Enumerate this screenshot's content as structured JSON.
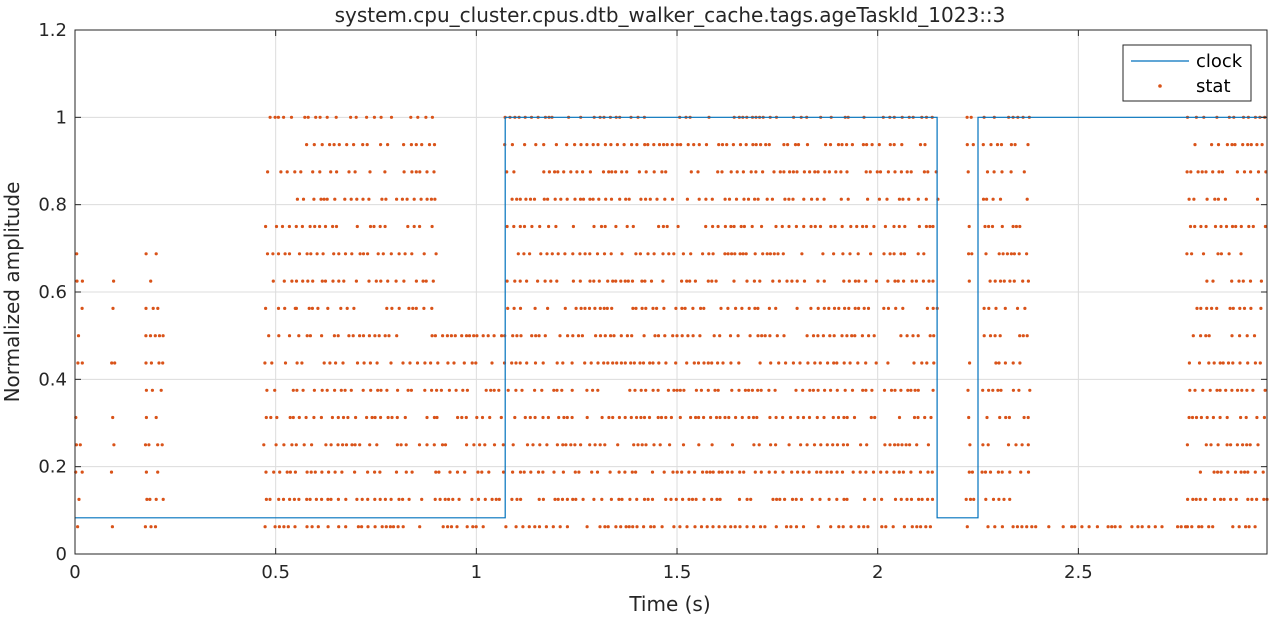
{
  "chart_data": {
    "type": "line",
    "title": "system.cpu_cluster.cpus.dtb_walker_cache.tags.ageTaskId_1023::3",
    "xlabel": "Time (s)",
    "ylabel": "Normalized amplitude",
    "xlim": [
      0,
      2.97
    ],
    "ylim": [
      0,
      1.2
    ],
    "xticks": [
      0,
      0.5,
      1,
      1.5,
      2,
      2.5
    ],
    "xtick_labels": [
      "0",
      "0.5",
      "1",
      "1.5",
      "2",
      "2.5"
    ],
    "yticks": [
      0,
      0.2,
      0.4,
      0.6,
      0.8,
      1.0,
      1.2
    ],
    "ytick_labels": [
      "0",
      "0.2",
      "0.4",
      "0.6",
      "0.8",
      "1",
      "1.2"
    ],
    "grid": true,
    "legend_position": "top-right",
    "series": [
      {
        "name": "clock",
        "kind": "step-line",
        "color": "#0072BD",
        "x": [
          0,
          1.072,
          1.072,
          2.148,
          2.148,
          2.25,
          2.25,
          2.97
        ],
        "y": [
          0.083,
          0.083,
          1.0,
          1.0,
          0.083,
          0.083,
          1.0,
          1.0
        ]
      },
      {
        "name": "stat",
        "kind": "scatter",
        "color": "#D95319",
        "levels": [
          0.0625,
          0.125,
          0.1875,
          0.25,
          0.3125,
          0.375,
          0.4375,
          0.5,
          0.5625,
          0.625,
          0.6875,
          0.75,
          0.8125,
          0.875,
          0.9375,
          1.0
        ],
        "x_segments": [
          {
            "from": 0.0,
            "to": 0.02,
            "levels": [
              0.0625,
              0.125,
              0.1875,
              0.25,
              0.3125,
              0.375,
              0.4375,
              0.5,
              0.5625,
              0.625,
              0.6875
            ]
          },
          {
            "from": 0.09,
            "to": 0.1,
            "levels": [
              0.0625,
              0.125,
              0.1875,
              0.25,
              0.3125,
              0.375,
              0.4375,
              0.5,
              0.5625,
              0.625
            ]
          },
          {
            "from": 0.17,
            "to": 0.22,
            "levels": [
              0.0625,
              0.125,
              0.1875,
              0.25,
              0.3125,
              0.375,
              0.4375,
              0.5,
              0.5625,
              0.625,
              0.6875
            ]
          },
          {
            "from": 0.47,
            "to": 0.55,
            "levels": [
              0.0625,
              0.125,
              0.1875,
              0.25,
              0.3125,
              0.375,
              0.4375,
              0.5,
              0.5625,
              0.625,
              0.6875,
              0.75,
              0.875,
              1.0
            ]
          },
          {
            "from": 0.55,
            "to": 0.9,
            "levels": [
              0.0625,
              0.125,
              0.1875,
              0.25,
              0.3125,
              0.375,
              0.4375,
              0.5,
              0.5625,
              0.625,
              0.6875,
              0.75,
              0.8125,
              0.875,
              0.9375,
              1.0
            ]
          },
          {
            "from": 0.9,
            "to": 1.07,
            "levels": [
              0.0625,
              0.125,
              0.1875,
              0.25,
              0.3125,
              0.375,
              0.4375,
              0.5
            ]
          },
          {
            "from": 1.07,
            "to": 2.15,
            "levels": [
              0.0625,
              0.125,
              0.1875,
              0.25,
              0.3125,
              0.375,
              0.4375,
              0.5,
              0.5625,
              0.625,
              0.6875,
              0.75,
              0.8125,
              0.875,
              0.9375,
              1.0
            ]
          },
          {
            "from": 2.22,
            "to": 2.24,
            "levels": [
              0.0625,
              0.125,
              0.1875,
              0.25,
              0.3125,
              0.375,
              0.4375,
              0.5,
              0.5625,
              0.625,
              0.6875,
              0.75,
              0.8125,
              0.875,
              0.9375,
              1.0
            ]
          },
          {
            "from": 2.26,
            "to": 2.38,
            "levels": [
              0.0625,
              0.125,
              0.1875,
              0.25,
              0.3125,
              0.375,
              0.4375,
              0.5,
              0.5625,
              0.625,
              0.6875,
              0.75,
              0.8125,
              0.875,
              0.9375,
              1.0
            ]
          },
          {
            "from": 2.38,
            "to": 2.77,
            "levels": [
              0.0625
            ]
          },
          {
            "from": 2.77,
            "to": 2.97,
            "levels": [
              0.0625,
              0.125,
              0.1875,
              0.25,
              0.3125,
              0.375,
              0.4375,
              0.5,
              0.5625,
              0.625,
              0.6875,
              0.75,
              0.8125,
              0.875,
              0.9375,
              1.0
            ]
          }
        ]
      }
    ],
    "legend": [
      {
        "label": "clock",
        "marker": "line",
        "color": "#0072BD"
      },
      {
        "label": "stat",
        "marker": "dot",
        "color": "#D95319"
      }
    ]
  }
}
